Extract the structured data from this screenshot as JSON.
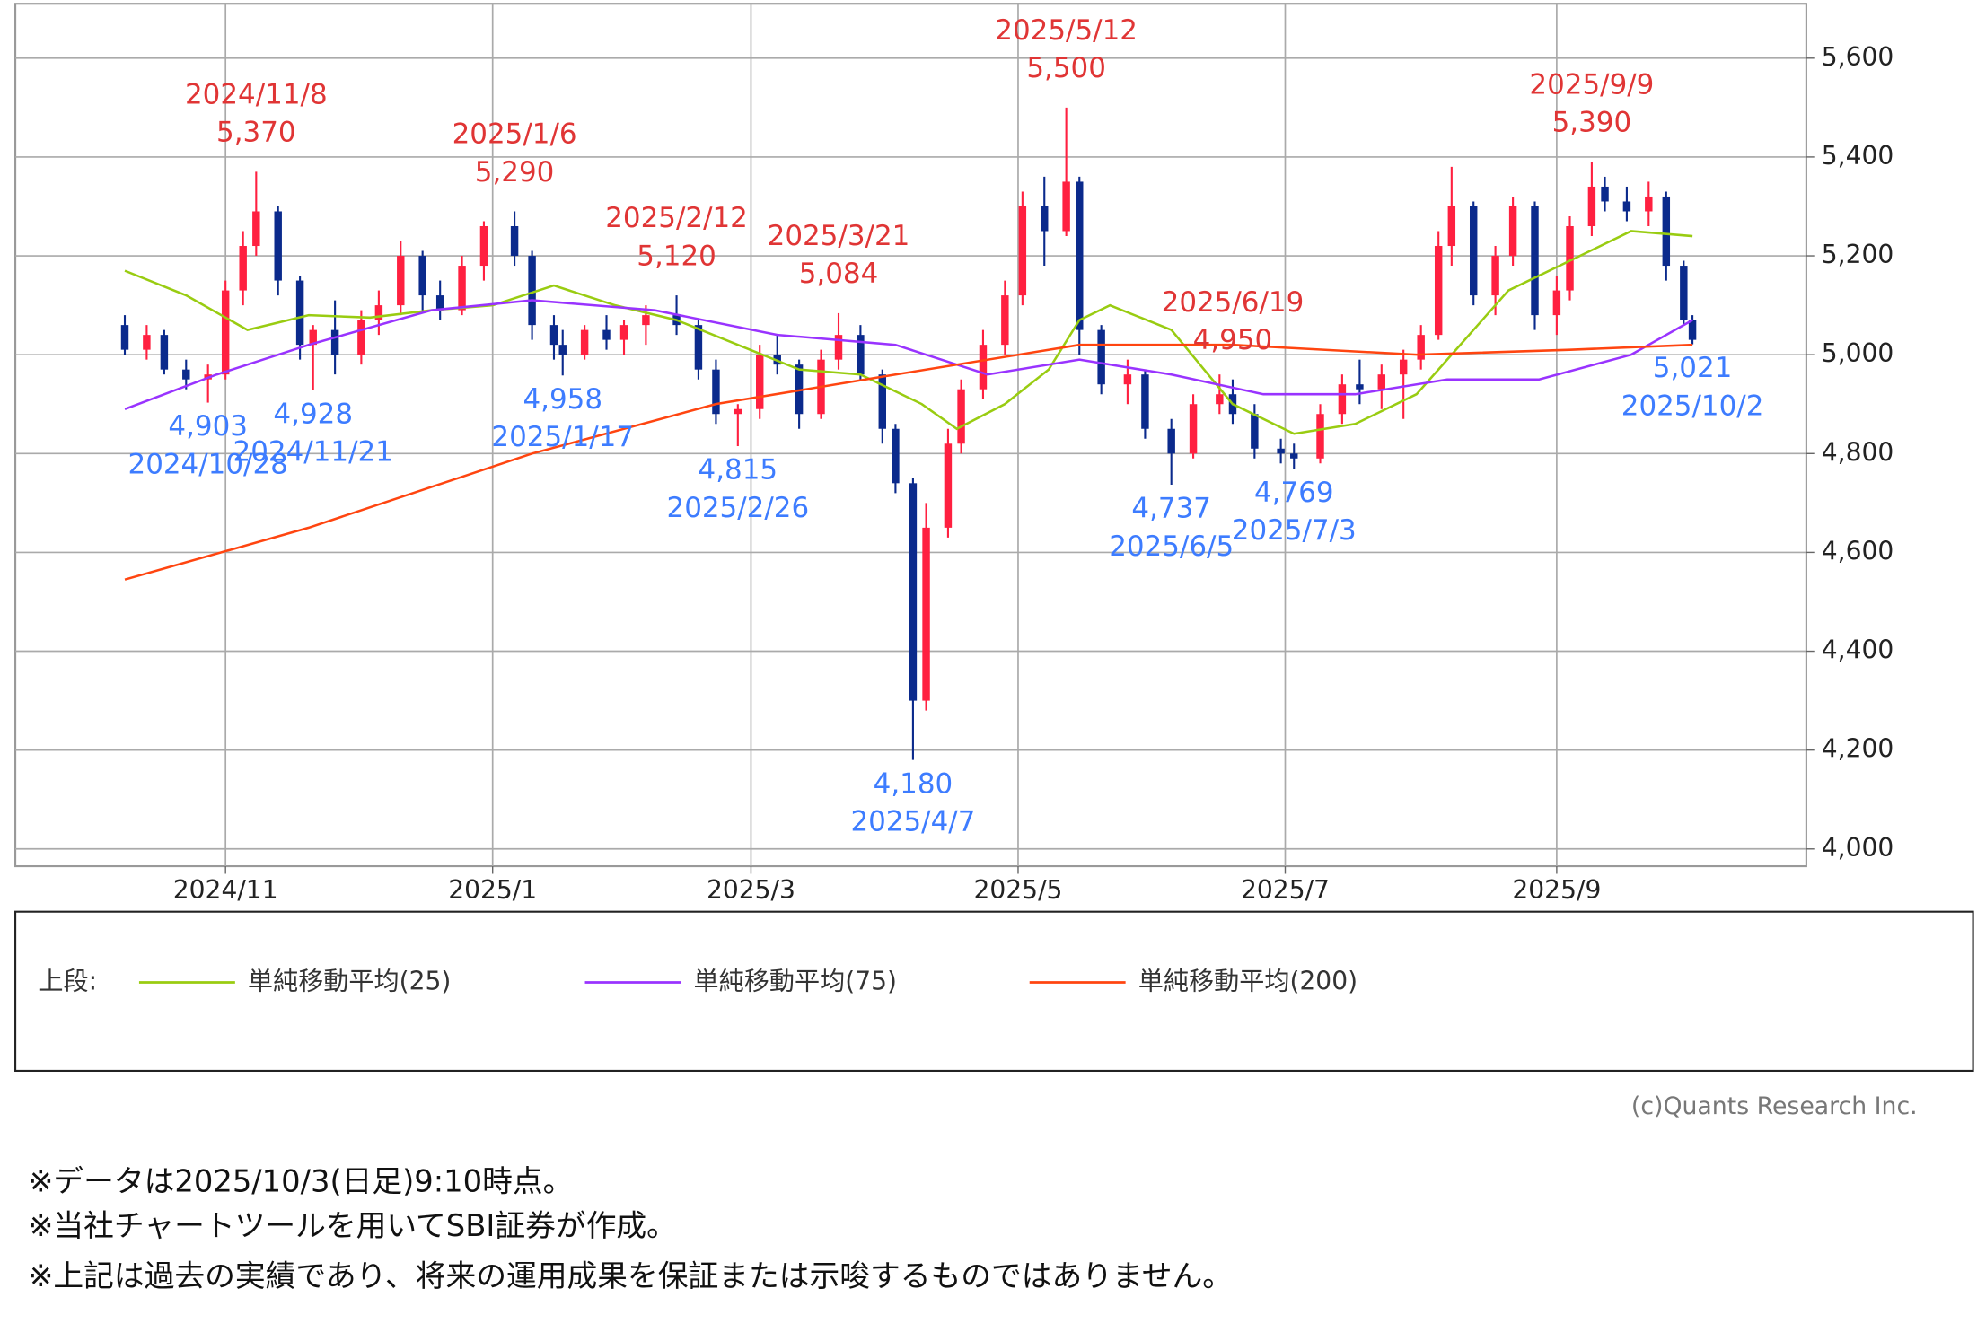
{
  "chart_data": {
    "type": "candlestick",
    "xlim": [
      "2024-09-14",
      "2025-10-28"
    ],
    "ylim": [
      3965,
      5710
    ],
    "xticks": [
      {
        "value": "2024-11-01",
        "label": "2024/11"
      },
      {
        "value": "2025-01-01",
        "label": "2025/1"
      },
      {
        "value": "2025-03-01",
        "label": "2025/3"
      },
      {
        "value": "2025-05-01",
        "label": "2025/5"
      },
      {
        "value": "2025-07-01",
        "label": "2025/7"
      },
      {
        "value": "2025-09-01",
        "label": "2025/9"
      }
    ],
    "yticks": [
      {
        "value": 4000,
        "label": "4,000"
      },
      {
        "value": 4200,
        "label": "4,200"
      },
      {
        "value": 4400,
        "label": "4,400"
      },
      {
        "value": 4600,
        "label": "4,600"
      },
      {
        "value": 4800,
        "label": "4,800"
      },
      {
        "value": 5000,
        "label": "5,000"
      },
      {
        "value": 5200,
        "label": "5,200"
      },
      {
        "value": 5400,
        "label": "5,400"
      },
      {
        "value": 5600,
        "label": "5,600"
      }
    ],
    "grid": true,
    "up_color": "#ff2040",
    "down_color": "#0b2a8c",
    "x": [
      "2024-10-09",
      "2024-10-14",
      "2024-10-18",
      "2024-10-23",
      "2024-10-28",
      "2024-11-01",
      "2024-11-05",
      "2024-11-08",
      "2024-11-13",
      "2024-11-18",
      "2024-11-21",
      "2024-11-26",
      "2024-12-02",
      "2024-12-06",
      "2024-12-11",
      "2024-12-16",
      "2024-12-20",
      "2024-12-25",
      "2024-12-30",
      "2025-01-06",
      "2025-01-10",
      "2025-01-15",
      "2025-01-17",
      "2025-01-22",
      "2025-01-27",
      "2025-01-31",
      "2025-02-05",
      "2025-02-12",
      "2025-02-17",
      "2025-02-21",
      "2025-02-26",
      "2025-03-03",
      "2025-03-07",
      "2025-03-12",
      "2025-03-17",
      "2025-03-21",
      "2025-03-26",
      "2025-03-31",
      "2025-04-03",
      "2025-04-07",
      "2025-04-10",
      "2025-04-15",
      "2025-04-18",
      "2025-04-23",
      "2025-04-28",
      "2025-05-02",
      "2025-05-07",
      "2025-05-12",
      "2025-05-15",
      "2025-05-20",
      "2025-05-26",
      "2025-05-30",
      "2025-06-05",
      "2025-06-10",
      "2025-06-16",
      "2025-06-19",
      "2025-06-24",
      "2025-06-30",
      "2025-07-03",
      "2025-07-09",
      "2025-07-14",
      "2025-07-18",
      "2025-07-23",
      "2025-07-28",
      "2025-08-01",
      "2025-08-05",
      "2025-08-08",
      "2025-08-13",
      "2025-08-18",
      "2025-08-22",
      "2025-08-27",
      "2025-09-01",
      "2025-09-04",
      "2025-09-09",
      "2025-09-12",
      "2025-09-17",
      "2025-09-22",
      "2025-09-26",
      "2025-09-30",
      "2025-10-02"
    ],
    "open": [
      5060,
      5010,
      5040,
      4970,
      4950,
      4960,
      5130,
      5220,
      5290,
      5150,
      5020,
      5050,
      5000,
      5070,
      5100,
      5200,
      5120,
      5090,
      5180,
      5260,
      5200,
      5060,
      5020,
      5000,
      5050,
      5030,
      5060,
      5080,
      5060,
      4970,
      4880,
      4890,
      5000,
      4980,
      4880,
      4990,
      5040,
      4960,
      4850,
      4740,
      4300,
      4650,
      4820,
      4930,
      5020,
      5120,
      5300,
      5250,
      5350,
      5050,
      4940,
      4960,
      4850,
      4800,
      4900,
      4920,
      4880,
      4810,
      4800,
      4790,
      4880,
      4940,
      4930,
      4960,
      4990,
      5040,
      5220,
      5300,
      5120,
      5200,
      5300,
      5080,
      5130,
      5260,
      5340,
      5310,
      5290,
      5320,
      5180,
      5070
    ],
    "high": [
      5080,
      5060,
      5050,
      4990,
      4980,
      5150,
      5250,
      5370,
      5300,
      5160,
      5060,
      5110,
      5090,
      5130,
      5230,
      5210,
      5150,
      5200,
      5270,
      5290,
      5210,
      5080,
      5050,
      5060,
      5080,
      5070,
      5100,
      5120,
      5070,
      4990,
      4900,
      5020,
      5040,
      4990,
      5010,
      5084,
      5060,
      4970,
      4860,
      4750,
      4700,
      4850,
      4950,
      5050,
      5150,
      5330,
      5360,
      5500,
      5360,
      5060,
      4990,
      4970,
      4870,
      4920,
      4960,
      4950,
      4900,
      4830,
      4820,
      4900,
      4960,
      4990,
      4980,
      5010,
      5060,
      5250,
      5380,
      5310,
      5220,
      5320,
      5310,
      5160,
      5280,
      5390,
      5360,
      5340,
      5350,
      5330,
      5190,
      5080
    ],
    "low": [
      5000,
      4990,
      4960,
      4930,
      4903,
      4950,
      5100,
      5200,
      5120,
      4990,
      4928,
      4960,
      4980,
      5040,
      5080,
      5090,
      5070,
      5080,
      5150,
      5180,
      5030,
      4990,
      4958,
      4990,
      5010,
      5000,
      5020,
      5040,
      4950,
      4860,
      4815,
      4870,
      4960,
      4850,
      4870,
      4970,
      4950,
      4820,
      4720,
      4180,
      4280,
      4630,
      4800,
      4910,
      5000,
      5100,
      5180,
      5240,
      5000,
      4920,
      4900,
      4830,
      4737,
      4790,
      4880,
      4860,
      4790,
      4780,
      4769,
      4780,
      4860,
      4900,
      4890,
      4870,
      4970,
      5030,
      5180,
      5100,
      5080,
      5180,
      5050,
      5040,
      5110,
      5240,
      5290,
      5270,
      5260,
      5150,
      5060,
      5021
    ],
    "close": [
      5010,
      5040,
      4970,
      4950,
      4960,
      5130,
      5220,
      5290,
      5150,
      5020,
      5050,
      5000,
      5070,
      5100,
      5200,
      5120,
      5090,
      5180,
      5260,
      5200,
      5060,
      5020,
      5000,
      5050,
      5030,
      5060,
      5080,
      5060,
      4970,
      4880,
      4890,
      5000,
      4980,
      4880,
      4990,
      5040,
      4960,
      4850,
      4740,
      4300,
      4650,
      4820,
      4930,
      5020,
      5120,
      5300,
      5250,
      5350,
      5050,
      4940,
      4960,
      4850,
      4800,
      4900,
      4920,
      4880,
      4810,
      4800,
      4790,
      4880,
      4940,
      4930,
      4960,
      4990,
      5040,
      5220,
      5300,
      5120,
      5200,
      5300,
      5080,
      5130,
      5260,
      5340,
      5310,
      5290,
      5320,
      5180,
      5070,
      5030
    ],
    "series": [
      {
        "name": "単純移動平均(25)",
        "color": "#99cc11",
        "x": [
          "2024-10-09",
          "2024-10-23",
          "2024-11-06",
          "2024-11-20",
          "2024-12-04",
          "2024-12-18",
          "2025-01-01",
          "2025-01-15",
          "2025-01-29",
          "2025-02-12",
          "2025-02-26",
          "2025-03-12",
          "2025-03-26",
          "2025-04-09",
          "2025-04-17",
          "2025-04-28",
          "2025-05-08",
          "2025-05-15",
          "2025-05-22",
          "2025-06-05",
          "2025-06-19",
          "2025-07-03",
          "2025-07-17",
          "2025-07-31",
          "2025-08-07",
          "2025-08-21",
          "2025-09-04",
          "2025-09-18",
          "2025-10-02"
        ],
        "values": [
          5170,
          5120,
          5050,
          5080,
          5075,
          5090,
          5100,
          5140,
          5100,
          5070,
          5020,
          4970,
          4960,
          4900,
          4850,
          4900,
          4970,
          5070,
          5100,
          5050,
          4900,
          4840,
          4860,
          4920,
          4990,
          5130,
          5190,
          5250,
          5240
        ]
      },
      {
        "name": "単純移動平均(75)",
        "color": "#9933ff",
        "x": [
          "2024-10-09",
          "2024-10-30",
          "2024-11-20",
          "2024-12-18",
          "2025-01-10",
          "2025-02-07",
          "2025-03-07",
          "2025-04-03",
          "2025-04-24",
          "2025-05-15",
          "2025-06-05",
          "2025-06-26",
          "2025-07-17",
          "2025-08-07",
          "2025-08-28",
          "2025-09-18",
          "2025-10-02"
        ],
        "values": [
          4890,
          4960,
          5020,
          5090,
          5110,
          5090,
          5040,
          5020,
          4960,
          4990,
          4960,
          4920,
          4920,
          4950,
          4950,
          5000,
          5070
        ]
      },
      {
        "name": "単純移動平均(200)",
        "color": "#ff4510",
        "x": [
          "2024-10-09",
          "2024-11-20",
          "2025-01-10",
          "2025-02-21",
          "2025-04-03",
          "2025-05-15",
          "2025-06-19",
          "2025-07-31",
          "2025-09-04",
          "2025-10-02"
        ],
        "values": [
          4545,
          4650,
          4800,
          4900,
          4960,
          5020,
          5020,
          5000,
          5010,
          5020
        ]
      }
    ],
    "annotations": [
      {
        "kind": "high",
        "date": "2024/11/8",
        "value": {
          "value": 5370,
          "label": "5,370"
        }
      },
      {
        "kind": "high",
        "date": "2025/1/6",
        "value": {
          "value": 5290,
          "label": "5,290"
        }
      },
      {
        "kind": "high",
        "date": "2025/2/12",
        "value": {
          "value": 5120,
          "label": "5,120"
        }
      },
      {
        "kind": "high",
        "date": "2025/3/21",
        "value": {
          "value": 5084,
          "label": "5,084"
        }
      },
      {
        "kind": "high",
        "date": "2025/5/12",
        "value": {
          "value": 5500,
          "label": "5,500"
        }
      },
      {
        "kind": "high",
        "date": "2025/6/19",
        "value": {
          "value": 4950,
          "label": "4,950"
        }
      },
      {
        "kind": "high",
        "date": "2025/9/9",
        "value": {
          "value": 5390,
          "label": "5,390"
        }
      },
      {
        "kind": "low",
        "date": "2024/10/28",
        "value": {
          "value": 4903,
          "label": "4,903"
        }
      },
      {
        "kind": "low",
        "date": "2024/11/21",
        "value": {
          "value": 4928,
          "label": "4,928"
        }
      },
      {
        "kind": "low",
        "date": "2025/1/17",
        "value": {
          "value": 4958,
          "label": "4,958"
        }
      },
      {
        "kind": "low",
        "date": "2025/2/26",
        "value": {
          "value": 4815,
          "label": "4,815"
        }
      },
      {
        "kind": "low",
        "date": "2025/4/7",
        "value": {
          "value": 4180,
          "label": "4,180"
        }
      },
      {
        "kind": "low",
        "date": "2025/6/5",
        "value": {
          "value": 4737,
          "label": "4,737"
        }
      },
      {
        "kind": "low",
        "date": "2025/7/3",
        "value": {
          "value": 4769,
          "label": "4,769"
        }
      },
      {
        "kind": "low",
        "date": "2025/10/2",
        "value": {
          "value": 5021,
          "label": "5,021"
        }
      }
    ],
    "legend_title": "上段:",
    "credit": "(c)Quants Research Inc.",
    "notes": [
      "※データは2025/10/3(日足)9:10時点。",
      "※当社チャートツールを用いてSBI証券が作成。",
      "※上記は過去の実績であり、将来の運用成果を保証または示唆するものではありません。"
    ]
  }
}
